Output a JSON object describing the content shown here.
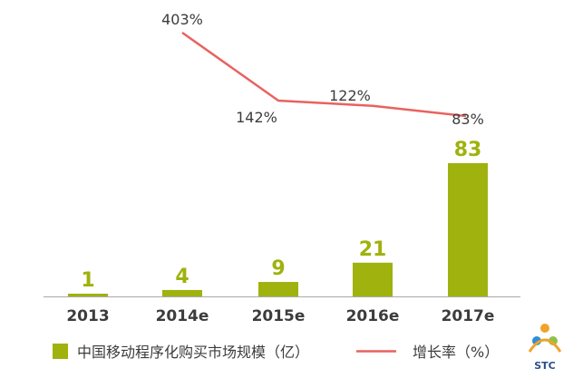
{
  "chart_data": {
    "type": "bar",
    "categories": [
      "2013",
      "2014e",
      "2015e",
      "2016e",
      "2017e"
    ],
    "series": [
      {
        "name": "中国移动程序化购买市场规模（亿）",
        "type": "bar",
        "values": [
          1,
          4,
          9,
          21,
          83
        ],
        "labels": [
          "1",
          "4",
          "9",
          "21",
          "83"
        ]
      },
      {
        "name": "增长率（%）",
        "type": "line",
        "values": [
          null,
          403,
          142,
          122,
          83
        ],
        "labels": [
          "",
          "403%",
          "142%",
          "122%",
          "83%"
        ]
      }
    ],
    "title": "",
    "xlabel": "",
    "ylabel": "",
    "grid": false,
    "legend_position": "bottom"
  },
  "logo": {
    "text": "STC"
  },
  "colors": {
    "bar": "#9fb20d",
    "bar_label": "#9fb20d",
    "line": "#e8625f",
    "text": "#3c3c3c",
    "axis": "#a9a9a9"
  }
}
